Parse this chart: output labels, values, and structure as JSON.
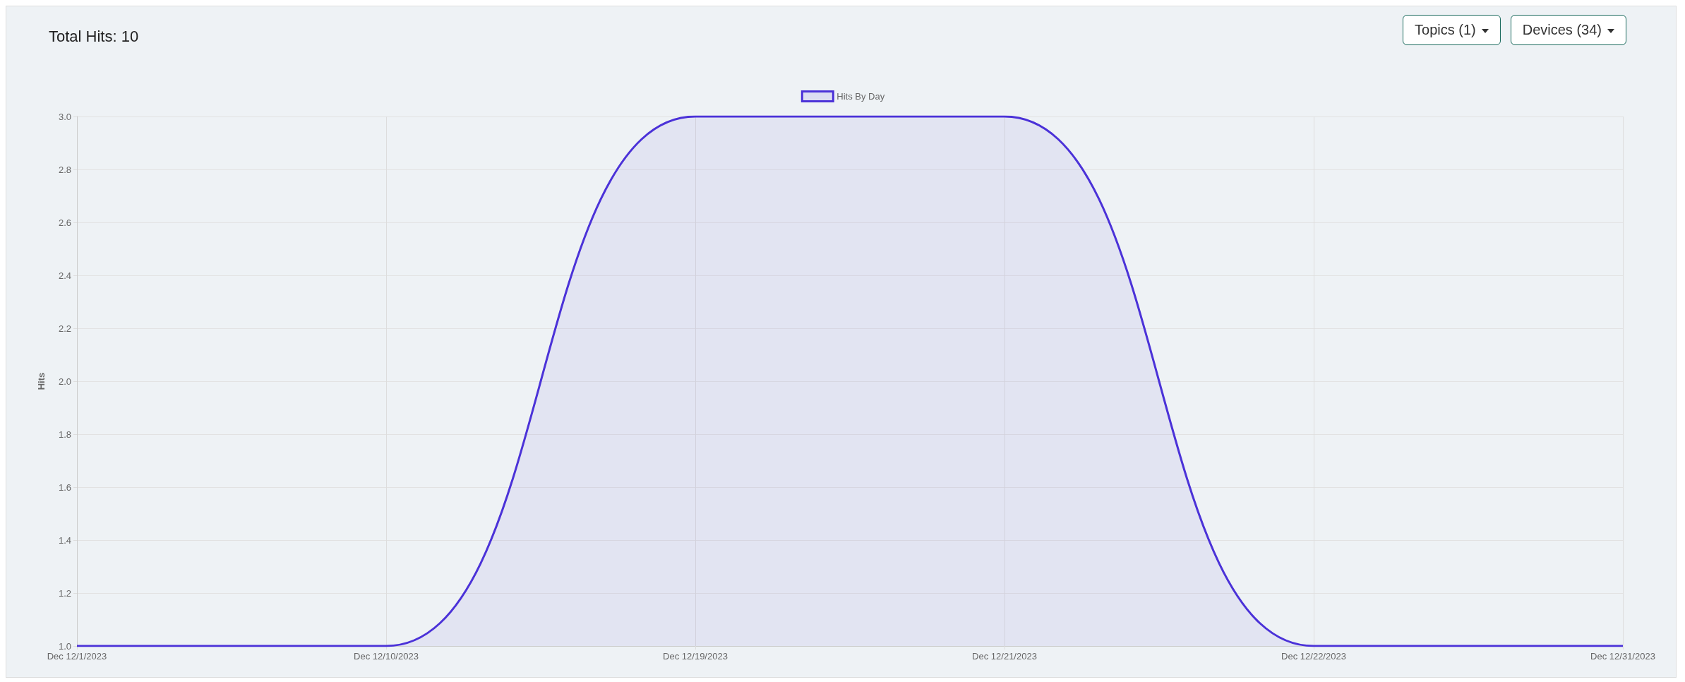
{
  "chart_data": {
    "type": "area",
    "title": "Total Hits: 10",
    "ylabel": "Hits",
    "annotations": [
      "Topics (1)",
      "Devices (34)"
    ],
    "categories": [
      "Dec 12/1/2023",
      "Dec 12/10/2023",
      "Dec 12/19/2023",
      "Dec 12/21/2023",
      "Dec 12/22/2023",
      "Dec 12/31/2023"
    ],
    "series": [
      {
        "name": "Hits By Day",
        "color": "#4b32d8",
        "values": [
          1,
          1,
          3,
          3,
          1,
          1
        ]
      }
    ],
    "ylim": [
      1,
      3
    ],
    "yticks": [
      {
        "value": 1,
        "label": "1.0"
      },
      {
        "value": 1.2,
        "label": "1.2"
      },
      {
        "value": 1.4,
        "label": "1.4"
      },
      {
        "value": 1.6,
        "label": "1.6"
      },
      {
        "value": 1.8,
        "label": "1.8"
      },
      {
        "value": 2,
        "label": "2.0"
      },
      {
        "value": 2.2,
        "label": "2.2"
      },
      {
        "value": 2.4,
        "label": "2.4"
      },
      {
        "value": 2.6,
        "label": "2.6"
      },
      {
        "value": 2.8,
        "label": "2.8"
      },
      {
        "value": 3,
        "label": "3.0"
      }
    ],
    "grid": true,
    "legend": "top",
    "marker": "none",
    "line_style": "solid"
  }
}
